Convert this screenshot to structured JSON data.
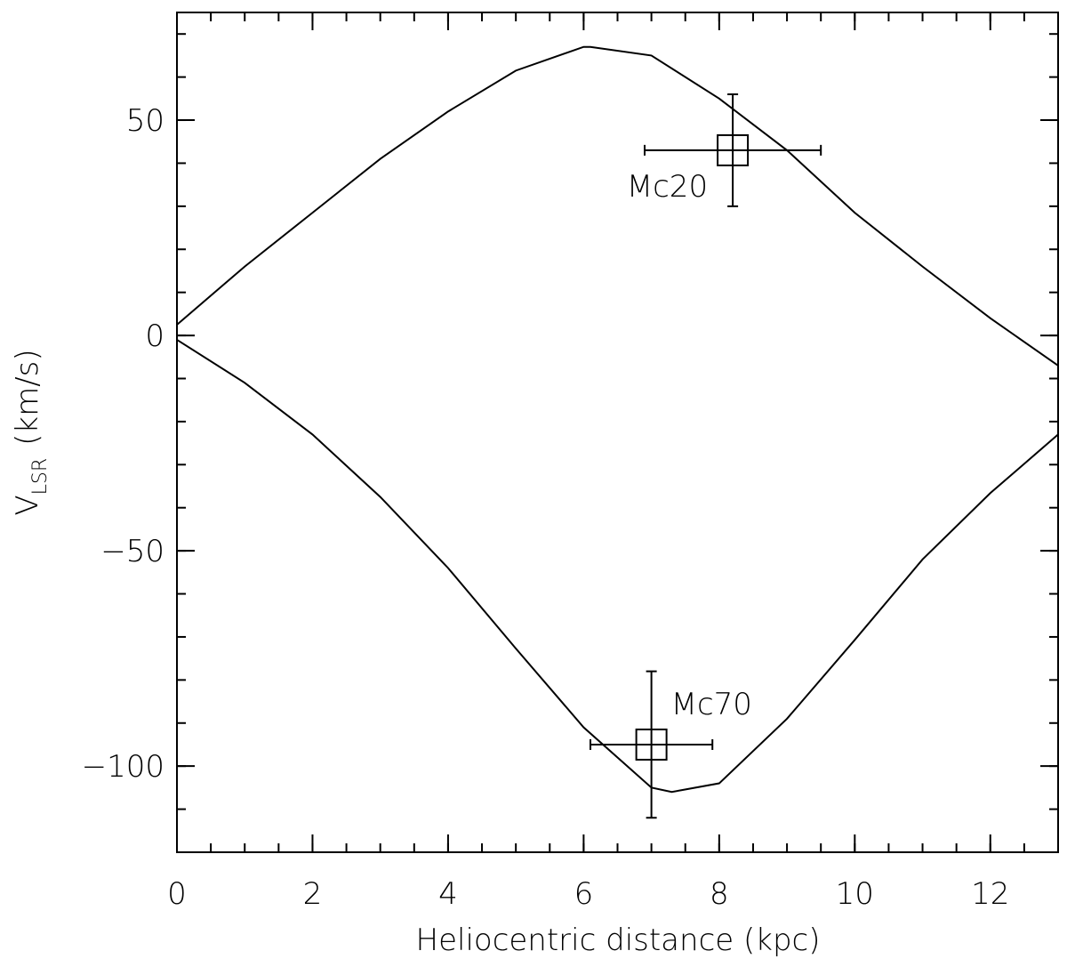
{
  "chart_data": {
    "type": "line",
    "xlabel": "Heliocentric distance (kpc)",
    "ylabel_parts": [
      "V",
      "LSR",
      "(km/s)"
    ],
    "xlim": [
      0,
      13
    ],
    "ylim": [
      -120,
      75
    ],
    "xticks": [
      0,
      2,
      4,
      6,
      8,
      10,
      12
    ],
    "yticks": [
      {
        "value": -100,
        "label": "−100"
      },
      {
        "value": -50,
        "label": "−50"
      },
      0,
      50
    ],
    "x_minor_step": 0.5,
    "y_minor_step": 10,
    "color": "#000000",
    "series": [
      {
        "x": [
          0,
          1,
          2,
          3,
          4,
          5,
          6,
          6.1,
          7,
          8,
          9,
          10,
          11,
          12,
          13
        ],
        "values": [
          2.5,
          16,
          28.5,
          41,
          52,
          61.5,
          67,
          67,
          65,
          55,
          43,
          28.5,
          16,
          4,
          -7
        ]
      },
      {
        "x": [
          0,
          1,
          2,
          3,
          4,
          5,
          6,
          7,
          7.3,
          8,
          9,
          10,
          11,
          12,
          13
        ],
        "values": [
          -1,
          -11,
          -23,
          -37.5,
          -54,
          -72.7,
          -91,
          -105,
          -106,
          -104,
          -89,
          -70.7,
          -52,
          -36.6,
          -23
        ]
      }
    ],
    "points": [
      {
        "name": "Mc20",
        "x": 8.2,
        "y": 43,
        "xerr": 1.3,
        "yerr": 13
      },
      {
        "name": "Mc70",
        "x": 7.0,
        "y": -95,
        "xerr": 0.9,
        "yerr": 17
      }
    ]
  }
}
